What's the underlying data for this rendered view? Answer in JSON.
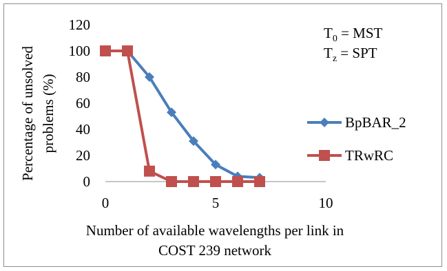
{
  "chart_data": {
    "type": "line",
    "xlabel_line1": "Number of available wavelengths per link in",
    "xlabel_line2": "COST 239 network",
    "ylabel_line1": "Percentage of unsolved",
    "ylabel_line2": "problems  (%)",
    "xlim": [
      0,
      10
    ],
    "ylim": [
      0,
      120
    ],
    "x_ticks": [
      0,
      5,
      10
    ],
    "y_ticks": [
      0,
      20,
      40,
      60,
      80,
      100,
      120
    ],
    "grid": false,
    "legend_position": "right",
    "annotations": {
      "line1_main": "T",
      "line1_sub": "0",
      "line1_rest": " = MST",
      "line2_main": "T",
      "line2_sub": "z",
      "line2_rest": " = SPT"
    },
    "series": [
      {
        "name": "BpBAR_2",
        "color": "#4a7ebb",
        "marker": "diamond",
        "x": [
          0,
          1,
          2,
          3,
          4,
          5,
          6,
          7
        ],
        "y": [
          100,
          100,
          80,
          53,
          31,
          13,
          4,
          3
        ]
      },
      {
        "name": "TRwRC",
        "color": "#c0504d",
        "marker": "square",
        "x": [
          0,
          1,
          2,
          3,
          4,
          5,
          6,
          7
        ],
        "y": [
          100,
          100,
          8,
          0,
          0,
          0,
          0,
          0
        ]
      }
    ]
  }
}
